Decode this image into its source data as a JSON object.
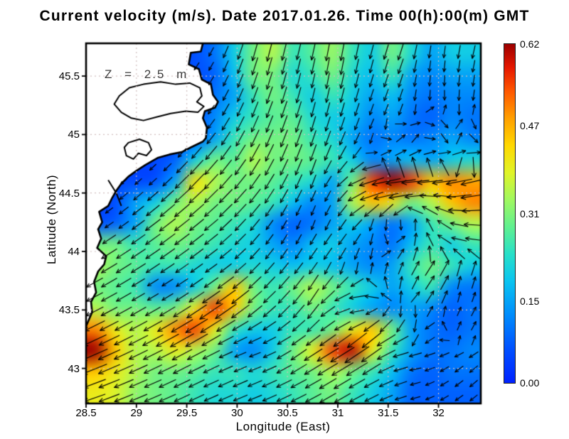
{
  "title": "Current velocity (m/s). Date 2017.01.26. Time 00(h):00(m) GMT",
  "annotation": "Z = 2.5 m",
  "axes": {
    "x": {
      "label": "Longitude (East)",
      "tick_labels": [
        "28.5",
        "29",
        "29.5",
        "30",
        "30.5",
        "31",
        "31.5",
        "32"
      ],
      "tick_values": [
        28.5,
        29,
        29.5,
        30,
        30.5,
        31,
        31.5,
        32
      ]
    },
    "y": {
      "label": "Latitude (North)",
      "tick_labels": [
        "45.5",
        "45",
        "44.5",
        "44",
        "43.5",
        "43"
      ],
      "tick_values": [
        45.5,
        45,
        44.5,
        44,
        43.5,
        43
      ]
    }
  },
  "colorbar": {
    "unit": "m/s",
    "min": 0.0,
    "max": 0.62,
    "tick_labels": [
      "0.62",
      "0.47",
      "0.31",
      "0.15",
      "0.00"
    ],
    "tick_values": [
      0.62,
      0.47,
      0.31,
      0.15,
      0.0
    ]
  },
  "chart_data": {
    "type": "heatmap",
    "field": "sea surface current speed (m/s) with direction vectors",
    "units": "m/s",
    "lon_range": [
      28.5,
      32.42
    ],
    "lat_range": [
      42.7,
      45.78
    ],
    "grid_cols": 20,
    "grid_rows": 17,
    "speed_grid": [
      [
        0.05,
        0.05,
        0.05,
        0.05,
        0.05,
        0.06,
        0.1,
        0.2,
        0.3,
        0.35,
        0.25,
        0.28,
        0.33,
        0.25,
        0.2,
        0.3,
        0.22,
        0.15,
        0.2,
        0.2
      ],
      [
        0.05,
        0.05,
        0.05,
        0.05,
        0.05,
        0.06,
        0.08,
        0.18,
        0.3,
        0.3,
        0.22,
        0.25,
        0.3,
        0.22,
        0.18,
        0.25,
        0.15,
        0.12,
        0.15,
        0.15
      ],
      [
        0.05,
        0.05,
        0.05,
        0.05,
        0.05,
        0.06,
        0.1,
        0.15,
        0.25,
        0.3,
        0.25,
        0.2,
        0.25,
        0.2,
        0.15,
        0.18,
        0.12,
        0.1,
        0.12,
        0.12
      ],
      [
        0.05,
        0.05,
        0.05,
        0.05,
        0.05,
        0.06,
        0.12,
        0.2,
        0.25,
        0.28,
        0.28,
        0.22,
        0.2,
        0.18,
        0.12,
        0.15,
        0.1,
        0.08,
        0.12,
        0.1
      ],
      [
        0.05,
        0.05,
        0.05,
        0.05,
        0.05,
        0.08,
        0.15,
        0.25,
        0.3,
        0.3,
        0.3,
        0.25,
        0.22,
        0.15,
        0.1,
        0.12,
        0.1,
        0.12,
        0.15,
        0.12
      ],
      [
        0.05,
        0.05,
        0.05,
        0.05,
        0.08,
        0.2,
        0.3,
        0.28,
        0.35,
        0.3,
        0.3,
        0.28,
        0.25,
        0.2,
        0.12,
        0.15,
        0.18,
        0.15,
        0.2,
        0.22
      ],
      [
        0.05,
        0.05,
        0.05,
        0.06,
        0.15,
        0.42,
        0.35,
        0.3,
        0.3,
        0.28,
        0.25,
        0.22,
        0.15,
        0.3,
        0.55,
        0.62,
        0.55,
        0.45,
        0.5,
        0.48
      ],
      [
        0.05,
        0.06,
        0.15,
        0.2,
        0.3,
        0.35,
        0.3,
        0.3,
        0.28,
        0.25,
        0.18,
        0.12,
        0.15,
        0.35,
        0.45,
        0.4,
        0.3,
        0.35,
        0.45,
        0.5
      ],
      [
        0.06,
        0.08,
        0.15,
        0.3,
        0.35,
        0.3,
        0.28,
        0.25,
        0.22,
        0.12,
        0.08,
        0.1,
        0.15,
        0.2,
        0.15,
        0.1,
        0.15,
        0.25,
        0.3,
        0.35
      ],
      [
        0.3,
        0.3,
        0.25,
        0.28,
        0.3,
        0.28,
        0.25,
        0.22,
        0.2,
        0.15,
        0.12,
        0.18,
        0.2,
        0.15,
        0.12,
        0.1,
        0.18,
        0.25,
        0.2,
        0.25
      ],
      [
        0.35,
        0.3,
        0.28,
        0.25,
        0.25,
        0.22,
        0.2,
        0.2,
        0.22,
        0.2,
        0.18,
        0.2,
        0.18,
        0.15,
        0.12,
        0.15,
        0.25,
        0.3,
        0.25,
        0.2
      ],
      [
        0.3,
        0.28,
        0.25,
        0.12,
        0.12,
        0.2,
        0.3,
        0.45,
        0.3,
        0.25,
        0.3,
        0.35,
        0.3,
        0.25,
        0.2,
        0.15,
        0.2,
        0.25,
        0.12,
        0.1
      ],
      [
        0.35,
        0.3,
        0.3,
        0.28,
        0.3,
        0.4,
        0.55,
        0.45,
        0.3,
        0.25,
        0.25,
        0.3,
        0.25,
        0.2,
        0.15,
        0.12,
        0.15,
        0.12,
        0.08,
        0.1
      ],
      [
        0.5,
        0.4,
        0.35,
        0.4,
        0.5,
        0.55,
        0.4,
        0.25,
        0.2,
        0.2,
        0.25,
        0.25,
        0.3,
        0.4,
        0.45,
        0.3,
        0.15,
        0.1,
        0.08,
        0.1
      ],
      [
        0.62,
        0.45,
        0.35,
        0.35,
        0.4,
        0.35,
        0.3,
        0.15,
        0.12,
        0.2,
        0.3,
        0.4,
        0.55,
        0.6,
        0.4,
        0.25,
        0.15,
        0.1,
        0.1,
        0.12
      ],
      [
        0.45,
        0.4,
        0.35,
        0.3,
        0.3,
        0.28,
        0.25,
        0.25,
        0.22,
        0.25,
        0.28,
        0.3,
        0.35,
        0.3,
        0.25,
        0.18,
        0.1,
        0.08,
        0.1,
        0.1
      ],
      [
        0.4,
        0.38,
        0.32,
        0.3,
        0.28,
        0.25,
        0.22,
        0.22,
        0.2,
        0.22,
        0.25,
        0.28,
        0.3,
        0.25,
        0.2,
        0.15,
        0.08,
        0.08,
        0.08,
        0.08
      ]
    ],
    "direction_deg_grid": [
      [
        225,
        225,
        225,
        225,
        225,
        235,
        242,
        250,
        255,
        256,
        256,
        258,
        260,
        258,
        255,
        252,
        258,
        262,
        258,
        255
      ],
      [
        225,
        225,
        225,
        225,
        225,
        235,
        240,
        248,
        252,
        255,
        256,
        258,
        260,
        258,
        255,
        250,
        260,
        265,
        262,
        258
      ],
      [
        225,
        225,
        225,
        225,
        225,
        232,
        238,
        245,
        250,
        252,
        255,
        258,
        258,
        255,
        252,
        250,
        262,
        268,
        265,
        260
      ],
      [
        225,
        225,
        225,
        225,
        228,
        230,
        235,
        242,
        248,
        250,
        252,
        255,
        255,
        252,
        250,
        248,
        265,
        80,
        270,
        85
      ],
      [
        225,
        225,
        225,
        226,
        228,
        230,
        232,
        240,
        245,
        248,
        250,
        252,
        250,
        248,
        245,
        40,
        60,
        270,
        80,
        265
      ],
      [
        222,
        222,
        223,
        224,
        226,
        228,
        230,
        235,
        240,
        245,
        248,
        250,
        245,
        230,
        30,
        25,
        20,
        15,
        10,
        5
      ],
      [
        220,
        220,
        221,
        222,
        224,
        226,
        228,
        230,
        235,
        240,
        245,
        250,
        230,
        205,
        195,
        188,
        185,
        190,
        192,
        195
      ],
      [
        218,
        218,
        219,
        220,
        222,
        222,
        224,
        226,
        230,
        238,
        242,
        245,
        240,
        210,
        195,
        190,
        185,
        165,
        185,
        188
      ],
      [
        215,
        215,
        216,
        217,
        218,
        219,
        220,
        225,
        230,
        235,
        245,
        250,
        240,
        225,
        260,
        270,
        90,
        140,
        170,
        180
      ],
      [
        212,
        213,
        214,
        215,
        216,
        217,
        218,
        222,
        228,
        235,
        240,
        235,
        230,
        240,
        265,
        45,
        85,
        140,
        168,
        172
      ],
      [
        210,
        211,
        212,
        213,
        214,
        215,
        216,
        218,
        225,
        230,
        232,
        235,
        245,
        260,
        80,
        70,
        60,
        55,
        75,
        70
      ],
      [
        208,
        209,
        210,
        211,
        212,
        214,
        215,
        216,
        222,
        226,
        230,
        238,
        220,
        190,
        145,
        90,
        60,
        55,
        80,
        70
      ],
      [
        207,
        208,
        209,
        210,
        211,
        213,
        214,
        215,
        218,
        222,
        228,
        232,
        205,
        190,
        220,
        265,
        270,
        85,
        65,
        60
      ],
      [
        205,
        206,
        207,
        208,
        209,
        210,
        211,
        208,
        205,
        208,
        215,
        218,
        215,
        218,
        220,
        205,
        260,
        185,
        65,
        60
      ],
      [
        203,
        204,
        205,
        206,
        207,
        208,
        206,
        203,
        200,
        205,
        215,
        212,
        210,
        213,
        215,
        195,
        185,
        205,
        215,
        220
      ],
      [
        200,
        202,
        203,
        204,
        205,
        206,
        205,
        204,
        203,
        205,
        208,
        210,
        212,
        210,
        208,
        200,
        195,
        210,
        218,
        222
      ],
      [
        198,
        200,
        202,
        203,
        204,
        205,
        204,
        203,
        202,
        204,
        206,
        208,
        210,
        208,
        206,
        198,
        195,
        208,
        215,
        220
      ]
    ],
    "colormap_stops": [
      [
        0.0,
        "#0022ff"
      ],
      [
        0.1,
        "#0050ff"
      ],
      [
        0.2,
        "#008cfc"
      ],
      [
        0.3,
        "#0ac4f0"
      ],
      [
        0.38,
        "#28e0c8"
      ],
      [
        0.46,
        "#60f090"
      ],
      [
        0.54,
        "#a0f860"
      ],
      [
        0.62,
        "#e0f428"
      ],
      [
        0.7,
        "#ffd800"
      ],
      [
        0.78,
        "#ffa000"
      ],
      [
        0.86,
        "#ff5800"
      ],
      [
        0.93,
        "#e61800"
      ],
      [
        1.0,
        "#9c0000"
      ]
    ],
    "coastline": [
      [
        29.67,
        45.82
      ],
      [
        29.66,
        45.78
      ],
      [
        29.64,
        45.71
      ],
      [
        29.54,
        45.7
      ],
      [
        29.52,
        45.6
      ],
      [
        29.62,
        45.56
      ],
      [
        29.65,
        45.47
      ],
      [
        29.74,
        45.43
      ],
      [
        29.76,
        45.34
      ],
      [
        29.81,
        45.28
      ],
      [
        29.78,
        45.23
      ],
      [
        29.68,
        45.2
      ],
      [
        29.66,
        45.14
      ],
      [
        29.7,
        45.06
      ],
      [
        29.69,
        44.97
      ],
      [
        29.66,
        44.94
      ],
      [
        29.54,
        44.89
      ],
      [
        29.45,
        44.85
      ],
      [
        29.33,
        44.83
      ],
      [
        29.21,
        44.8
      ],
      [
        29.09,
        44.74
      ],
      [
        29.0,
        44.69
      ],
      [
        28.92,
        44.64
      ],
      [
        28.85,
        44.58
      ],
      [
        28.8,
        44.52
      ],
      [
        28.76,
        44.46
      ],
      [
        28.72,
        44.39
      ],
      [
        28.63,
        44.34
      ],
      [
        28.66,
        44.25
      ],
      [
        28.62,
        44.19
      ],
      [
        28.65,
        44.11
      ],
      [
        28.61,
        44.03
      ],
      [
        28.7,
        43.96
      ],
      [
        28.68,
        43.89
      ],
      [
        28.62,
        43.83
      ],
      [
        28.58,
        43.74
      ],
      [
        28.6,
        43.65
      ],
      [
        28.55,
        43.57
      ],
      [
        28.56,
        43.48
      ],
      [
        28.52,
        43.4
      ],
      [
        28.5,
        43.36
      ],
      [
        28.3,
        43.3
      ],
      [
        28.3,
        45.9
      ],
      [
        29.67,
        45.9
      ]
    ],
    "lakes": [
      [
        [
          28.83,
          45.33
        ],
        [
          28.93,
          45.4
        ],
        [
          29.07,
          45.43
        ],
        [
          29.24,
          45.45
        ],
        [
          29.39,
          45.43
        ],
        [
          29.53,
          45.44
        ],
        [
          29.63,
          45.4
        ],
        [
          29.65,
          45.33
        ],
        [
          29.6,
          45.28
        ],
        [
          29.67,
          45.24
        ],
        [
          29.61,
          45.19
        ],
        [
          29.49,
          45.2
        ],
        [
          29.34,
          45.18
        ],
        [
          29.2,
          45.15
        ],
        [
          29.07,
          45.12
        ],
        [
          28.95,
          45.14
        ],
        [
          28.85,
          45.19
        ],
        [
          28.78,
          45.26
        ]
      ],
      [
        [
          28.92,
          44.93
        ],
        [
          29.03,
          44.96
        ],
        [
          29.12,
          44.93
        ],
        [
          29.15,
          44.87
        ],
        [
          29.1,
          44.82
        ],
        [
          29.02,
          44.84
        ],
        [
          28.97,
          44.79
        ],
        [
          28.9,
          44.82
        ],
        [
          28.88,
          44.89
        ]
      ]
    ],
    "spit": [
      [
        28.72,
        44.61
      ],
      [
        28.8,
        44.5
      ],
      [
        28.85,
        44.39
      ]
    ]
  }
}
